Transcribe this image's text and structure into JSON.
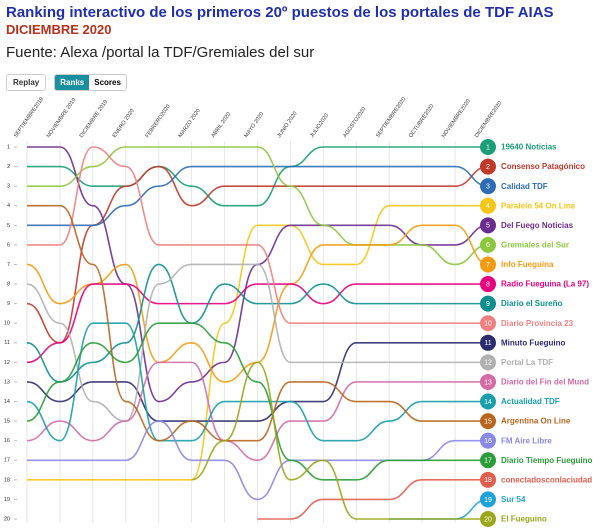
{
  "header": {
    "title": "Ranking interactivo de los primeros 20º puestos de los portales de TDF AIAS",
    "subtitle": "DICIEMBRE 2020",
    "source": "Fuente: Alexa /portal la TDF/Gremiales del sur"
  },
  "controls": {
    "replay": "Replay",
    "ranks": "Ranks",
    "scores": "Scores"
  },
  "chart_data": {
    "type": "bump",
    "categories": [
      "SEPTIEMBRE2019",
      "NOVIEMBRE 2019",
      "DICIEMBRE 2019",
      "ENERO 2020",
      "FEBRERO2020",
      "MARZO 2020",
      "ABRIL 2020",
      "MAYO 2020",
      "JUNIO 2020",
      "JULIO2020",
      "AGOSTO2020",
      "SEPTIEMBRE2020",
      "OCTUBRE2020",
      "NOVIEMBRE2020",
      "DICIEMBRE2020"
    ],
    "ylim": [
      1,
      20
    ],
    "yticks": [
      1,
      2,
      3,
      4,
      5,
      6,
      7,
      8,
      9,
      10,
      11,
      12,
      13,
      14,
      15,
      16,
      17,
      18,
      19,
      20
    ],
    "series": [
      {
        "name": "19640 Noticias",
        "color": "#1a9e77",
        "values": [
          2,
          2,
          3,
          3,
          2,
          3,
          4,
          4,
          2,
          1,
          1,
          1,
          1,
          1,
          1
        ]
      },
      {
        "name": "Consenso Patagónico",
        "color": "#c0392b",
        "values": [
          9,
          11,
          5,
          3,
          2,
          4,
          3,
          3,
          3,
          3,
          3,
          3,
          3,
          3,
          2
        ]
      },
      {
        "name": "Calidad TDF",
        "color": "#2e6db4",
        "values": [
          5,
          5,
          5,
          4,
          3,
          2,
          2,
          2,
          2,
          2,
          2,
          2,
          2,
          2,
          3
        ]
      },
      {
        "name": "Paralelo 54 On Line",
        "color": "#f5c518",
        "values": [
          18,
          18,
          18,
          18,
          18,
          18,
          10,
          5,
          5,
          7,
          7,
          4,
          4,
          4,
          4
        ]
      },
      {
        "name": "Del Fuego Noticias",
        "color": "#6a2c8e",
        "values": [
          1,
          1,
          4,
          8,
          14,
          13,
          12,
          7,
          5,
          5,
          5,
          5,
          6,
          6,
          5
        ]
      },
      {
        "name": "Gremiales del Sur",
        "color": "#8dc63f",
        "values": [
          3,
          3,
          2,
          1,
          1,
          1,
          1,
          1,
          3,
          5,
          6,
          6,
          6,
          7,
          6
        ]
      },
      {
        "name": "Info Fueguina",
        "color": "#f39c12",
        "values": [
          7,
          9,
          8,
          7,
          12,
          11,
          13,
          12,
          8,
          6,
          6,
          6,
          5,
          5,
          7
        ]
      },
      {
        "name": "Radio Fueguina (La 97)",
        "color": "#e6007e",
        "values": [
          12,
          11,
          8,
          8,
          9,
          9,
          9,
          8,
          8,
          9,
          8,
          8,
          8,
          8,
          8
        ]
      },
      {
        "name": "Diario el Sureño",
        "color": "#0e8f8f",
        "values": [
          11,
          13,
          12,
          11,
          7,
          10,
          8,
          9,
          9,
          8,
          9,
          9,
          9,
          9,
          9
        ]
      },
      {
        "name": "Diario Provincia 23",
        "color": "#f08080",
        "values": [
          6,
          6,
          1,
          2,
          6,
          6,
          6,
          6,
          10,
          10,
          10,
          10,
          10,
          10,
          10
        ]
      },
      {
        "name": "Minuto Fueguino",
        "color": "#2c2c6e",
        "values": [
          13,
          14,
          13,
          13,
          15,
          15,
          15,
          15,
          14,
          14,
          11,
          11,
          11,
          11,
          11
        ]
      },
      {
        "name": "Portal La TDF",
        "color": "#b0b0b0",
        "values": [
          8,
          10,
          14,
          15,
          8,
          7,
          7,
          7,
          12,
          12,
          12,
          12,
          12,
          12,
          12
        ]
      },
      {
        "name": "Diario del Fin del Mund",
        "color": "#d46aa6",
        "values": [
          16,
          15,
          16,
          15,
          12,
          12,
          16,
          17,
          15,
          15,
          13,
          13,
          13,
          13,
          13
        ]
      },
      {
        "name": "Actualidad TDF",
        "color": "#1a9eaa",
        "values": [
          14,
          16,
          10,
          10,
          16,
          16,
          14,
          14,
          14,
          16,
          16,
          15,
          14,
          14,
          14
        ]
      },
      {
        "name": "Argentina On Line",
        "color": "#b8651e",
        "values": [
          4,
          4,
          7,
          14,
          16,
          15,
          16,
          16,
          13,
          13,
          14,
          14,
          15,
          15,
          15
        ]
      },
      {
        "name": "FM Aire Libre",
        "color": "#8888e6",
        "values": [
          17,
          17,
          17,
          17,
          15,
          17,
          17,
          19,
          17,
          17,
          17,
          17,
          17,
          16,
          16
        ]
      },
      {
        "name": "Diario Tiempo Fueguino",
        "color": "#2a9d3a",
        "values": [
          15,
          13,
          11,
          12,
          10,
          10,
          11,
          13,
          17,
          18,
          18,
          17,
          17,
          17,
          17
        ]
      },
      {
        "name": "conectadosconlaciudad",
        "color": "#e35d4d",
        "values": [
          null,
          null,
          null,
          null,
          null,
          null,
          null,
          20,
          20,
          19,
          19,
          19,
          18,
          18,
          18
        ]
      },
      {
        "name": "Sur 54",
        "color": "#1fa3d6",
        "values": [
          null,
          null,
          null,
          null,
          null,
          null,
          null,
          null,
          null,
          null,
          null,
          20,
          20,
          20,
          19
        ]
      },
      {
        "name": "El Fueguino",
        "color": "#9aa51a",
        "values": [
          null,
          null,
          null,
          null,
          null,
          18,
          16,
          12,
          18,
          17,
          20,
          20,
          20,
          20,
          20
        ]
      }
    ]
  }
}
